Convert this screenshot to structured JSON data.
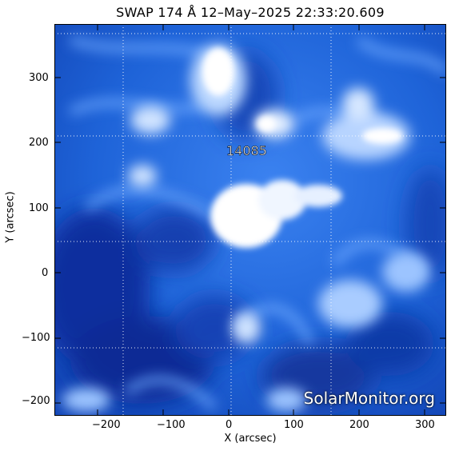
{
  "figure": {
    "title": "SWAP 174 Å 12–May–2025 22:33:20.609",
    "x_axis_label": "X (arcsec)",
    "y_axis_label": "Y (arcsec)",
    "x_ticks": [
      "−200",
      "−100",
      "0",
      "100",
      "200",
      "300"
    ],
    "y_ticks": [
      "300",
      "200",
      "100",
      "0",
      "−100",
      "−200"
    ],
    "x_range": [
      -270,
      330
    ],
    "y_range": [
      -220,
      380
    ],
    "active_region_label": "14085",
    "watermark": "SolarMonitor.org",
    "colormap": {
      "deep": "#0a2f9e",
      "mid": "#1e63d8",
      "bright": "#6ea9ff",
      "saturated": "#ffffff"
    }
  }
}
